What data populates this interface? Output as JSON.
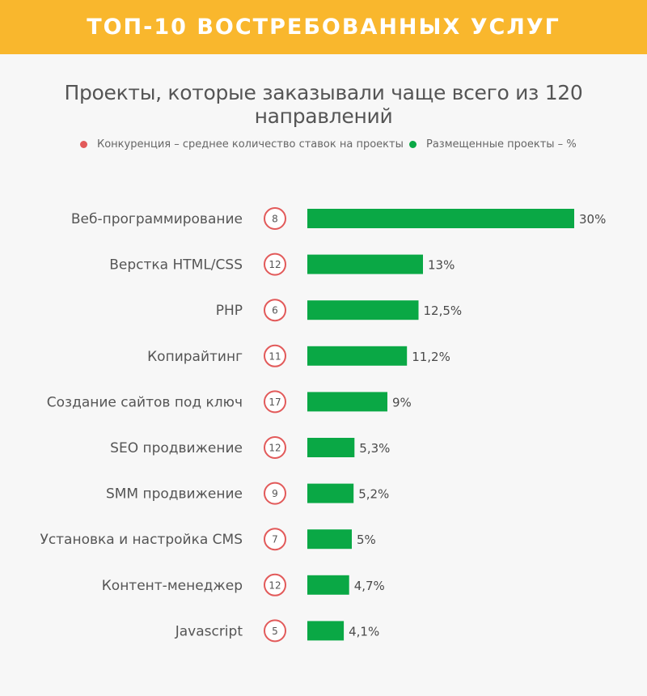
{
  "header": {
    "title": "ТОП-10 ВОСТРЕБОВАННЫХ УСЛУГ",
    "subtitle": "Проекты, которые заказывали чаще всего из 120 направлений"
  },
  "legend": {
    "competition": "Конкуренция – среднее количество ставок на проекты",
    "placed": "Размещенные проекты – %"
  },
  "colors": {
    "banner": "#f9b72d",
    "bar": "#0aa845",
    "competition": "#e25a5a",
    "background": "#f7f7f7"
  },
  "chart_data": {
    "type": "bar",
    "orientation": "horizontal",
    "categories": [
      "Веб-программирование",
      "Верстка HTML/CSS",
      "PHP",
      "Копирайтинг",
      "Создание сайтов под ключ",
      "SEO продвижение",
      "SMM продвижение",
      "Установка и настройка CMS",
      "Контент-менеджер",
      "Javascript"
    ],
    "values": [
      30,
      13,
      12.5,
      11.2,
      9,
      5.3,
      5.2,
      5,
      4.7,
      4.1
    ],
    "value_labels": [
      "30%",
      "13%",
      "12,5%",
      "11,2%",
      "9%",
      "5,3%",
      "5,2%",
      "5%",
      "4,7%",
      "4,1%"
    ],
    "bids": [
      8,
      12,
      6,
      11,
      17,
      12,
      9,
      7,
      12,
      5
    ],
    "xlim": [
      0,
      30
    ],
    "grid": false
  }
}
